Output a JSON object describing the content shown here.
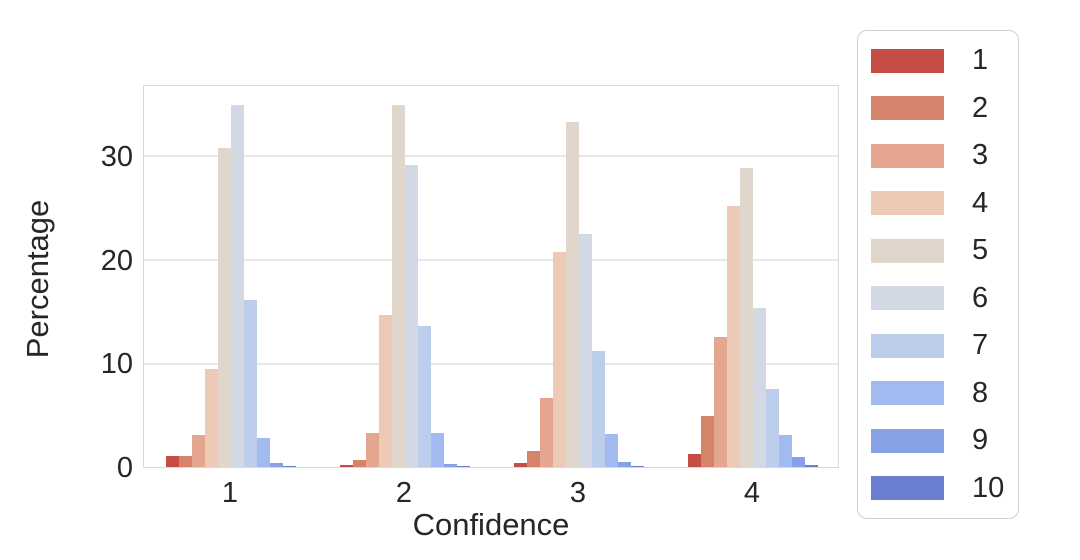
{
  "chart_data": {
    "type": "bar",
    "title": "",
    "xlabel": "Confidence",
    "ylabel": "Percentage",
    "categories": [
      "1",
      "2",
      "3",
      "4"
    ],
    "yticks": [
      0,
      10,
      20,
      30
    ],
    "ylim": [
      0,
      37
    ],
    "grid": true,
    "legend_position": "outside-right",
    "series": [
      {
        "name": "1",
        "color": "#c44e45",
        "values": [
          1.1,
          0.2,
          0.35,
          1.3
        ]
      },
      {
        "name": "2",
        "color": "#d6836b",
        "values": [
          1.1,
          0.7,
          1.5,
          4.9
        ]
      },
      {
        "name": "3",
        "color": "#e5a68f",
        "values": [
          3.1,
          3.3,
          6.7,
          12.6
        ]
      },
      {
        "name": "4",
        "color": "#edcab5",
        "values": [
          9.5,
          14.7,
          20.8,
          25.2
        ]
      },
      {
        "name": "5",
        "color": "#e0d6cb",
        "values": [
          30.8,
          35.0,
          33.3,
          28.9
        ]
      },
      {
        "name": "6",
        "color": "#d2d9e5",
        "values": [
          35.0,
          29.2,
          22.5,
          15.4
        ]
      },
      {
        "name": "7",
        "color": "#bdceed",
        "values": [
          16.1,
          13.6,
          11.2,
          7.5
        ]
      },
      {
        "name": "8",
        "color": "#a1baef",
        "values": [
          2.8,
          3.3,
          3.2,
          3.1
        ]
      },
      {
        "name": "9",
        "color": "#87a1e5",
        "values": [
          0.4,
          0.3,
          0.5,
          1.0
        ]
      },
      {
        "name": "10",
        "color": "#6a7fd2",
        "values": [
          0.05,
          0.1,
          0.1,
          0.2
        ]
      }
    ]
  }
}
